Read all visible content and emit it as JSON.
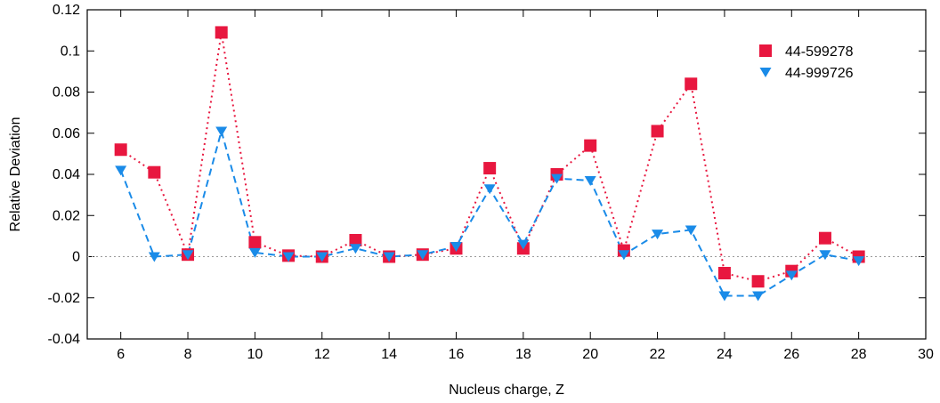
{
  "chart_data": {
    "type": "scatter",
    "xlabel": "Nucleus charge, Z",
    "ylabel": "Relative Deviation",
    "xlim": [
      5,
      30
    ],
    "ylim": [
      -0.04,
      0.12
    ],
    "x_ticks": [
      6,
      8,
      10,
      12,
      14,
      16,
      18,
      20,
      22,
      24,
      26,
      28,
      30
    ],
    "y_ticks": [
      -0.04,
      -0.02,
      0,
      0.02,
      0.04,
      0.06,
      0.08,
      0.1,
      0.12
    ],
    "x_tick_labels": [
      "6",
      "8",
      "10",
      "12",
      "14",
      "16",
      "18",
      "20",
      "22",
      "24",
      "26",
      "28",
      "30"
    ],
    "y_tick_labels": [
      "-0.04",
      "-0.02",
      "0",
      "0.02",
      "0.04",
      "0.06",
      "0.08",
      "0.1",
      "0.12"
    ],
    "zero_line": true,
    "grid": false,
    "legend_position": "top-right",
    "x": [
      6,
      7,
      8,
      9,
      10,
      11,
      12,
      13,
      14,
      15,
      16,
      17,
      18,
      19,
      20,
      21,
      22,
      23,
      24,
      25,
      26,
      27,
      28
    ],
    "series": [
      {
        "name": "44-599278",
        "marker": "square",
        "line_style": "dotted",
        "color": "#e8173f",
        "values": [
          0.052,
          0.041,
          0.001,
          0.109,
          0.007,
          0.0005,
          0.0,
          0.008,
          0.0,
          0.001,
          0.004,
          0.043,
          0.004,
          0.04,
          0.054,
          0.003,
          0.061,
          0.084,
          -0.008,
          -0.012,
          -0.007,
          0.009,
          0.0
        ]
      },
      {
        "name": "44-999726",
        "marker": "triangle-down",
        "line_style": "dashed",
        "color": "#1a8be8",
        "values": [
          0.042,
          0.0,
          0.001,
          0.061,
          0.002,
          0.0,
          0.0,
          0.004,
          0.0,
          0.001,
          0.005,
          0.033,
          0.006,
          0.038,
          0.037,
          0.001,
          0.011,
          0.013,
          -0.019,
          -0.019,
          -0.009,
          0.001,
          -0.002
        ]
      }
    ]
  }
}
